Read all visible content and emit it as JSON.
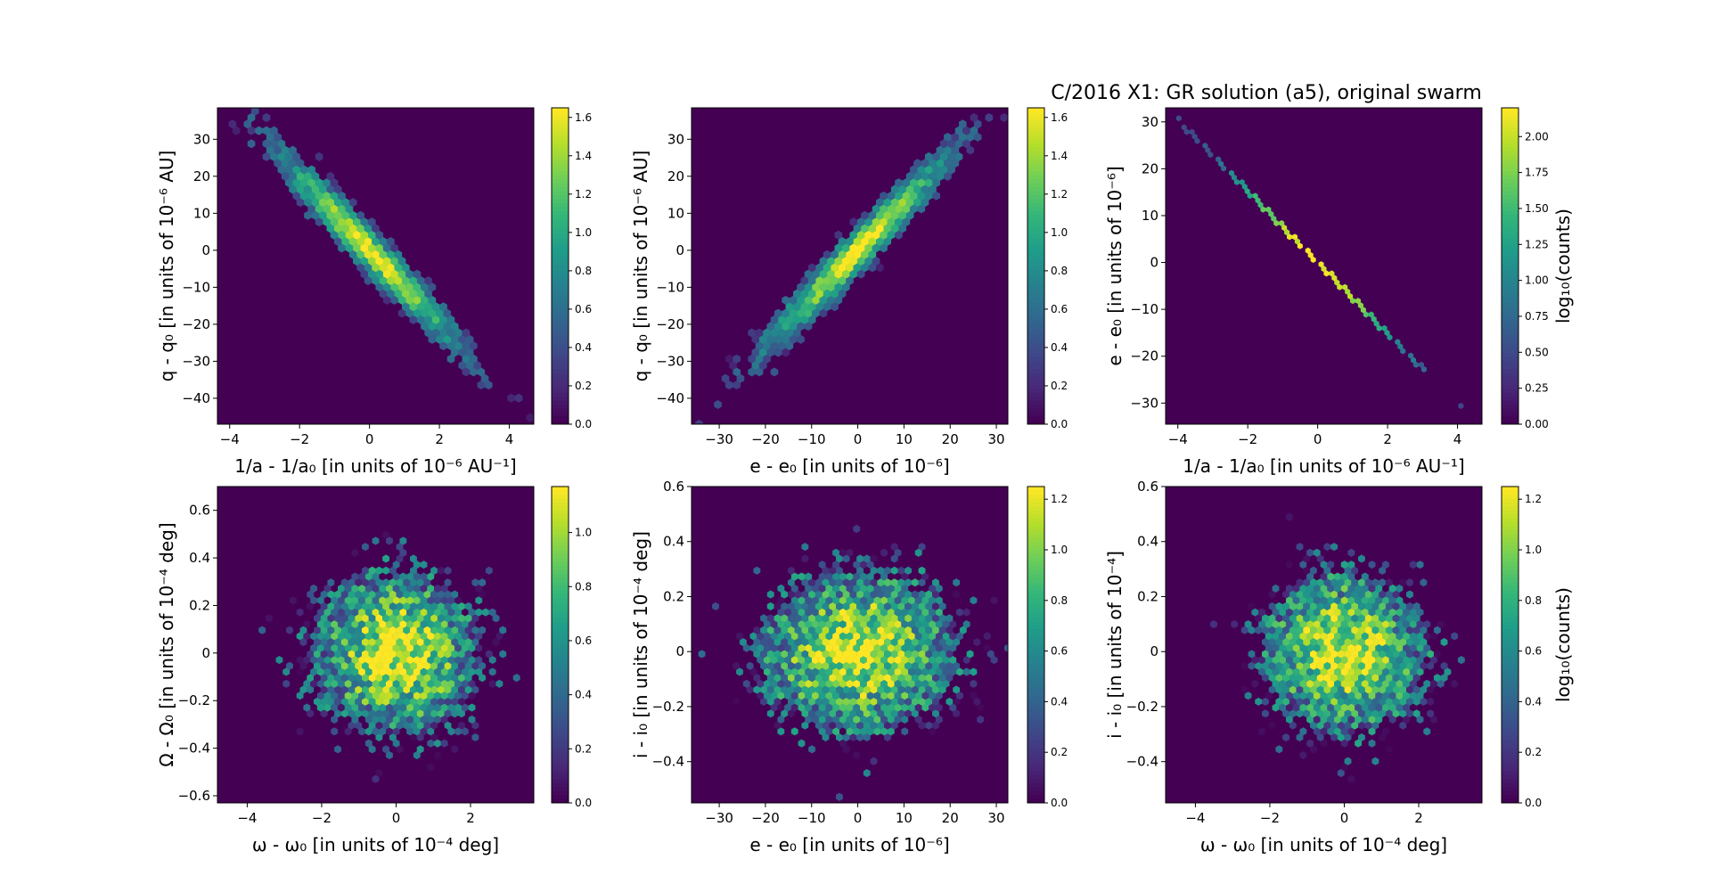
{
  "figure_title": "C/2016 X1: GR solution (a5), original swarm",
  "colors": {
    "viridis": [
      "#440154",
      "#482878",
      "#3e4989",
      "#31688e",
      "#26828e",
      "#1f9e89",
      "#35b779",
      "#6ece58",
      "#b5de2b",
      "#fde725"
    ],
    "background": "#440154"
  },
  "chart_data": [
    {
      "type": "heatmap",
      "subtype": "hexbin",
      "xlabel": "1/a - 1/a₀ [in units of 10⁻⁶ AU⁻¹]",
      "ylabel": "q - q₀ [in units of 10⁻⁶ AU]",
      "xlim": [
        -4.35,
        4.7
      ],
      "ylim": [
        -47,
        38.5
      ],
      "xticks": [
        -4,
        -2,
        0,
        2,
        4
      ],
      "yticks": [
        -40,
        -30,
        -20,
        -10,
        0,
        10,
        20,
        30
      ],
      "colorbar": {
        "label": "",
        "range": [
          0,
          1.65
        ],
        "ticks": [
          0.0,
          0.2,
          0.4,
          0.6,
          0.8,
          1.0,
          1.2,
          1.4,
          1.6
        ]
      },
      "distribution": {
        "mean": [
          0,
          0
        ],
        "sd": [
          1.25,
          12.5
        ],
        "correlation": -0.97,
        "peak": 1.62,
        "nbins": 42
      }
    },
    {
      "type": "heatmap",
      "subtype": "hexbin",
      "xlabel": "e - e₀ [in units of 10⁻⁶]",
      "ylabel": "q - q₀ [in units of 10⁻⁶ AU]",
      "xlim": [
        -36,
        32.5
      ],
      "ylim": [
        -47,
        38.5
      ],
      "xticks": [
        -30,
        -20,
        -10,
        0,
        10,
        20,
        30
      ],
      "yticks": [
        -40,
        -30,
        -20,
        -10,
        0,
        10,
        20,
        30
      ],
      "colorbar": {
        "label": "",
        "range": [
          0,
          1.65
        ],
        "ticks": [
          0.0,
          0.2,
          0.4,
          0.6,
          0.8,
          1.0,
          1.2,
          1.4,
          1.6
        ]
      },
      "distribution": {
        "mean": [
          0,
          0
        ],
        "sd": [
          9.5,
          12.5
        ],
        "correlation": 0.97,
        "peak": 1.62,
        "nbins": 42
      }
    },
    {
      "type": "heatmap",
      "subtype": "hexbin",
      "xlabel": "1/a - 1/a₀ [in units of 10⁻⁶ AU⁻¹]",
      "ylabel": "e - e₀ [in units of 10⁻⁶]",
      "xlim": [
        -4.35,
        4.7
      ],
      "ylim": [
        -34.5,
        33
      ],
      "xticks": [
        -4,
        -2,
        0,
        2,
        4
      ],
      "yticks": [
        -30,
        -20,
        -10,
        0,
        10,
        20,
        30
      ],
      "colorbar": {
        "label": "log₁₀(counts)",
        "range": [
          0,
          2.2
        ],
        "ticks": [
          0.0,
          0.25,
          0.5,
          0.75,
          1.0,
          1.25,
          1.5,
          1.75,
          2.0
        ],
        "ticklabels": [
          "0.00",
          "0.25",
          "0.50",
          "0.75",
          "1.00",
          "1.25",
          "1.50",
          "1.75",
          "2.00"
        ]
      },
      "distribution": {
        "mean": [
          0,
          0
        ],
        "sd": [
          1.25,
          9.5
        ],
        "correlation": -0.9998,
        "peak": 2.2,
        "nbins": 60
      }
    },
    {
      "type": "heatmap",
      "subtype": "hexbin",
      "xlabel": "ω - ω₀ [in units of 10⁻⁴ deg]",
      "ylabel": "Ω - Ω₀ [in units of 10⁻⁴ deg]",
      "xlim": [
        -4.8,
        3.7
      ],
      "ylim": [
        -0.63,
        0.7
      ],
      "xticks": [
        -4,
        -2,
        0,
        2
      ],
      "yticks": [
        -0.6,
        -0.4,
        -0.2,
        0.0,
        0.2,
        0.4,
        0.6
      ],
      "colorbar": {
        "label": "",
        "range": [
          0,
          1.17
        ],
        "ticks": [
          0.0,
          0.2,
          0.4,
          0.6,
          0.8,
          1.0
        ]
      },
      "distribution": {
        "mean": [
          0,
          0
        ],
        "sd": [
          1.0,
          0.15
        ],
        "correlation": -0.05,
        "peak": 1.15,
        "nbins": 46
      }
    },
    {
      "type": "heatmap",
      "subtype": "hexbin",
      "xlabel": "e - e₀ [in units of 10⁻⁶]",
      "ylabel": "i - i₀ [in units of 10⁻⁴ deg]",
      "xlim": [
        -36,
        32.5
      ],
      "ylim": [
        -0.55,
        0.6
      ],
      "xticks": [
        -30,
        -20,
        -10,
        0,
        10,
        20,
        30
      ],
      "yticks": [
        -0.4,
        -0.2,
        0.0,
        0.2,
        0.4,
        0.6
      ],
      "colorbar": {
        "label": "",
        "range": [
          0,
          1.25
        ],
        "ticks": [
          0.0,
          0.2,
          0.4,
          0.6,
          0.8,
          1.0,
          1.2
        ]
      },
      "distribution": {
        "mean": [
          0,
          0
        ],
        "sd": [
          9.5,
          0.13
        ],
        "correlation": 0.03,
        "peak": 1.22,
        "nbins": 46
      }
    },
    {
      "type": "heatmap",
      "subtype": "hexbin",
      "xlabel": "ω - ω₀ [in units of 10⁻⁴ deg]",
      "ylabel": "i - i₀ [in units of 10⁻⁴]",
      "xlim": [
        -4.8,
        3.7
      ],
      "ylim": [
        -0.55,
        0.6
      ],
      "xticks": [
        -4,
        -2,
        0,
        2
      ],
      "yticks": [
        -0.4,
        -0.2,
        0.0,
        0.2,
        0.4,
        0.6
      ],
      "colorbar": {
        "label": "log₁₀(counts)",
        "range": [
          0,
          1.25
        ],
        "ticks": [
          0.0,
          0.2,
          0.4,
          0.6,
          0.8,
          1.0,
          1.2
        ]
      },
      "distribution": {
        "mean": [
          0,
          0
        ],
        "sd": [
          1.0,
          0.13
        ],
        "correlation": -0.05,
        "peak": 1.22,
        "nbins": 46
      }
    }
  ]
}
